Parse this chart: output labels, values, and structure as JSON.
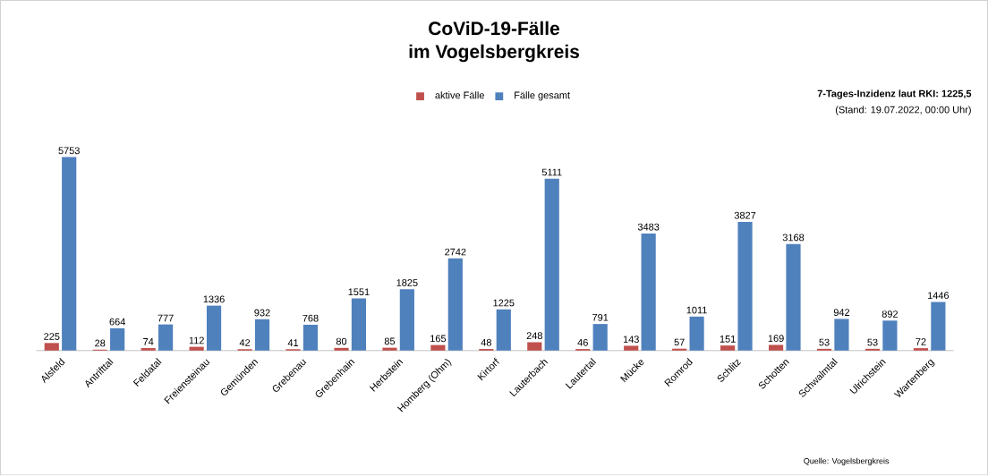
{
  "chart_data": {
    "type": "bar",
    "title": "CoViD-19-Fälle",
    "subtitle": "im Vogelsbergkreis",
    "categories": [
      "Alsfeld",
      "Antrifttal",
      "Feldatal",
      "Freiensteinau",
      "Gemünden",
      "Grebenau",
      "Grebenhain",
      "Herbstein",
      "Homberg (Ohm)",
      "Kirtorf",
      "Lauterbach",
      "Lautertal",
      "Mücke",
      "Romrod",
      "Schlitz",
      "Schotten",
      "Schwalmtal",
      "Ulrichstein",
      "Wartenberg"
    ],
    "series": [
      {
        "name": "aktive Fälle",
        "color": "#c0504d",
        "values": [
          225,
          28,
          74,
          112,
          42,
          41,
          80,
          85,
          165,
          48,
          248,
          46,
          143,
          57,
          151,
          169,
          53,
          53,
          72
        ]
      },
      {
        "name": "Fälle gesamt",
        "color": "#4f81bd",
        "values": [
          5753,
          664,
          777,
          1336,
          932,
          768,
          1551,
          1825,
          2742,
          1225,
          5111,
          791,
          3483,
          1011,
          3827,
          3168,
          942,
          892,
          1446
        ]
      }
    ],
    "data_labels": true,
    "legend": "top",
    "annotations": [
      "7-Tages-Inzidenz laut RKI: 1225,5",
      "(Stand: 19.07.2022, 00:00 Uhr)",
      "Quelle: Vogelsbergkreis"
    ]
  }
}
